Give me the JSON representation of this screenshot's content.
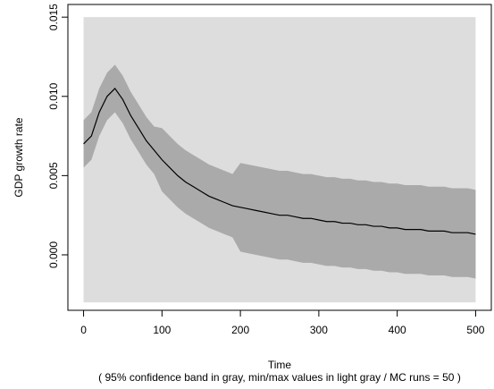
{
  "chart_data": {
    "type": "line",
    "x_label": "Time",
    "y_label": "GDP growth rate",
    "subtitle": "( 95% confidence band in gray, min/max values in light gray / MC runs = 50 )",
    "x": [
      0,
      10,
      20,
      30,
      40,
      50,
      60,
      70,
      80,
      90,
      100,
      110,
      120,
      130,
      140,
      150,
      160,
      170,
      180,
      190,
      200,
      210,
      220,
      230,
      240,
      250,
      260,
      270,
      280,
      290,
      300,
      310,
      320,
      330,
      340,
      350,
      360,
      370,
      380,
      390,
      400,
      410,
      420,
      430,
      440,
      450,
      460,
      470,
      480,
      490,
      500
    ],
    "bands": [
      {
        "color": "#dddddd",
        "lower": [
          -0.003,
          -0.003,
          -0.003,
          -0.003,
          -0.003,
          -0.003,
          -0.003,
          -0.003,
          -0.003,
          -0.003,
          -0.003,
          -0.003,
          -0.003,
          -0.003,
          -0.003,
          -0.003,
          -0.003,
          -0.003,
          -0.003,
          -0.003,
          -0.003,
          -0.003,
          -0.003,
          -0.003,
          -0.003,
          -0.003,
          -0.003,
          -0.003,
          -0.003,
          -0.003,
          -0.003,
          -0.003,
          -0.003,
          -0.003,
          -0.003,
          -0.003,
          -0.003,
          -0.003,
          -0.003,
          -0.003,
          -0.003,
          -0.003,
          -0.003,
          -0.003,
          -0.003,
          -0.003,
          -0.003,
          -0.003,
          -0.003,
          -0.003,
          -0.003
        ],
        "upper": [
          0.015,
          0.015,
          0.015,
          0.015,
          0.015,
          0.015,
          0.015,
          0.015,
          0.015,
          0.015,
          0.015,
          0.015,
          0.015,
          0.015,
          0.015,
          0.015,
          0.015,
          0.015,
          0.015,
          0.015,
          0.015,
          0.015,
          0.015,
          0.015,
          0.015,
          0.015,
          0.015,
          0.015,
          0.015,
          0.015,
          0.015,
          0.015,
          0.015,
          0.015,
          0.015,
          0.015,
          0.015,
          0.015,
          0.015,
          0.015,
          0.015,
          0.015,
          0.015,
          0.015,
          0.015,
          0.015,
          0.015,
          0.015,
          0.015,
          0.015,
          0.015
        ]
      },
      {
        "color": "#aaaaaa",
        "lower": [
          0.0055,
          0.006,
          0.0075,
          0.0085,
          0.009,
          0.0083,
          0.0073,
          0.0065,
          0.0057,
          0.0051,
          0.004,
          0.0035,
          0.003,
          0.0026,
          0.0023,
          0.002,
          0.0017,
          0.0015,
          0.0013,
          0.0011,
          0.0002,
          0.0001,
          0.0,
          -0.0001,
          -0.0002,
          -0.0003,
          -0.0003,
          -0.0004,
          -0.0005,
          -0.0005,
          -0.0006,
          -0.0007,
          -0.0007,
          -0.0008,
          -0.0008,
          -0.0009,
          -0.0009,
          -0.001,
          -0.001,
          -0.0011,
          -0.0011,
          -0.0012,
          -0.0012,
          -0.0012,
          -0.0013,
          -0.0013,
          -0.0013,
          -0.0014,
          -0.0014,
          -0.0014,
          -0.0015
        ],
        "upper": [
          0.0085,
          0.009,
          0.0105,
          0.0115,
          0.012,
          0.0113,
          0.0103,
          0.0095,
          0.0087,
          0.0081,
          0.008,
          0.0075,
          0.007,
          0.0066,
          0.0063,
          0.006,
          0.0057,
          0.0055,
          0.0053,
          0.0051,
          0.0058,
          0.0057,
          0.0056,
          0.0055,
          0.0054,
          0.0053,
          0.0053,
          0.0052,
          0.0051,
          0.0051,
          0.005,
          0.0049,
          0.0049,
          0.0048,
          0.0048,
          0.0047,
          0.0047,
          0.0046,
          0.0046,
          0.0045,
          0.0045,
          0.0044,
          0.0044,
          0.0044,
          0.0043,
          0.0043,
          0.0043,
          0.0042,
          0.0042,
          0.0042,
          0.0041
        ]
      }
    ],
    "series": [
      {
        "color": "#000000",
        "values": [
          0.007,
          0.0075,
          0.009,
          0.01,
          0.0105,
          0.0098,
          0.0088,
          0.008,
          0.0072,
          0.0066,
          0.006,
          0.0055,
          0.005,
          0.0046,
          0.0043,
          0.004,
          0.0037,
          0.0035,
          0.0033,
          0.0031,
          0.003,
          0.0029,
          0.0028,
          0.0027,
          0.0026,
          0.0025,
          0.0025,
          0.0024,
          0.0023,
          0.0023,
          0.0022,
          0.0021,
          0.0021,
          0.002,
          0.002,
          0.0019,
          0.0019,
          0.0018,
          0.0018,
          0.0017,
          0.0017,
          0.0016,
          0.0016,
          0.0016,
          0.0015,
          0.0015,
          0.0015,
          0.0014,
          0.0014,
          0.0014,
          0.0013
        ]
      }
    ],
    "xlim": [
      -20,
      520
    ],
    "ylim": [
      -0.0035,
      0.0158
    ],
    "xticks": [
      0,
      100,
      200,
      300,
      400,
      500
    ],
    "yticks": [
      {
        "value": 0,
        "label": "0.000"
      },
      {
        "value": 0.005,
        "label": "0.005"
      },
      {
        "value": 0.01,
        "label": "0.010"
      },
      {
        "value": 0.015,
        "label": "0.015"
      }
    ]
  }
}
